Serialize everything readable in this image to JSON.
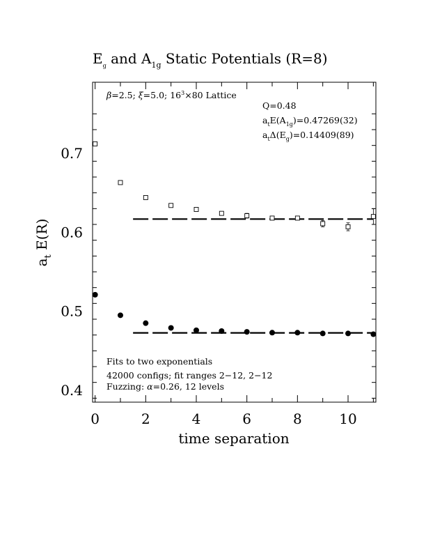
{
  "chart_data": {
    "type": "scatter",
    "title": {
      "prefix": "E",
      "prefix_sub": "g",
      "mid": " and A",
      "mid_sub": "1g",
      "suffix": " Static Potentials (R=8)"
    },
    "xlabel": "time separation",
    "ylabel": {
      "main": "a",
      "sub": "t",
      "rest": " E(R)"
    },
    "xlim": [
      -0.1,
      11.1
    ],
    "ylim": [
      0.385,
      0.79
    ],
    "x_ticks": [
      "0",
      "2",
      "4",
      "6",
      "8",
      "10"
    ],
    "x_tick_values": [
      0,
      2,
      4,
      6,
      8,
      10
    ],
    "y_ticks": [
      "0.4",
      "0.5",
      "0.6",
      "0.7"
    ],
    "y_tick_values": [
      0.4,
      0.5,
      0.6,
      0.7
    ],
    "grid": false,
    "series": [
      {
        "marker": "open-square",
        "x": [
          0,
          1,
          2,
          3,
          4,
          5,
          6,
          7,
          8,
          9,
          10,
          11
        ],
        "y": [
          0.712,
          0.663,
          0.644,
          0.634,
          0.629,
          0.624,
          0.621,
          0.618,
          0.618,
          0.611,
          0.607,
          0.62
        ],
        "err": [
          0.001,
          0.001,
          0.001,
          0.001,
          0.001,
          0.002,
          0.003,
          0.002,
          0.002,
          0.004,
          0.005,
          0.01
        ]
      },
      {
        "marker": "filled-circle",
        "x": [
          0,
          1,
          2,
          3,
          4,
          5,
          6,
          7,
          8,
          9,
          10,
          11
        ],
        "y": [
          0.521,
          0.495,
          0.485,
          0.479,
          0.476,
          0.475,
          0.474,
          0.473,
          0.473,
          0.472,
          0.472,
          0.471
        ],
        "err": [
          0,
          0,
          0,
          0,
          0,
          0,
          0,
          0,
          0,
          0,
          0,
          0
        ]
      }
    ],
    "fit_lines": [
      {
        "y": 0.6168,
        "x_range": [
          1.5,
          11
        ]
      },
      {
        "y": 0.4727,
        "x_range": [
          1.5,
          11
        ]
      }
    ],
    "annotations": {
      "lattice": {
        "beta": "β",
        "beta_rest": "=2.5; ",
        "xi": "ξ",
        "xi_rest": "=5.0; 16",
        "sup": "3",
        "end": "×80 Lattice"
      },
      "q": "Q=0.48",
      "e_a1g": {
        "main": "a",
        "sub1": "t",
        "mid": "E(A",
        "sub2": "1g",
        "end": ")=0.47269(32)"
      },
      "delta_eg": {
        "main": "a",
        "sub1": "t",
        "mid": "Δ(E",
        "sub2": "g",
        "end": ")=0.14409(89)"
      },
      "fits": "Fits to two exponentials",
      "configs": "42000 configs; fit ranges 2−12, 2−12",
      "fuzzing": {
        "pre": "Fuzzing: ",
        "alpha": "α",
        "post": "=0.26, 12 levels"
      }
    }
  }
}
